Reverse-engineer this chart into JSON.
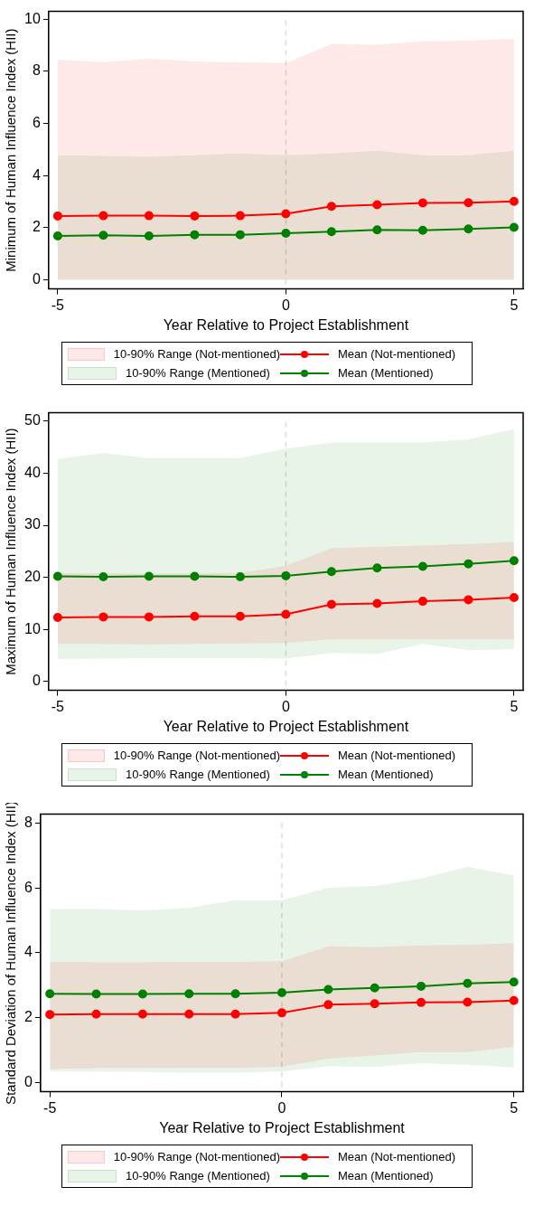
{
  "chart_data": [
    {
      "type": "line",
      "xlabel": "Year Relative to Project Establishment",
      "ylabel": "Minimum of Human Influence Index (HII)",
      "x": [
        -5,
        -4,
        -3,
        -2,
        -1,
        0,
        1,
        2,
        3,
        4,
        5
      ],
      "xlim": [
        -5.2,
        5.2
      ],
      "xticks": [
        -5,
        0,
        5
      ],
      "ylim": [
        -0.35,
        10.3
      ],
      "yticks": [
        0,
        2,
        4,
        6,
        8,
        10
      ],
      "grid": false,
      "legend": "bottom",
      "marker": "circle",
      "line_style": "solid",
      "annotations": [
        "10-90% Range (Not-mentioned)",
        "10-90% Range (Mentioned)"
      ],
      "ref_lines": [
        {
          "axis": "x",
          "value": 0,
          "color": "#dddddd",
          "line_style": "dashed"
        }
      ],
      "series": [
        {
          "name": "Mean (Not-mentioned)",
          "type": "line",
          "color": "#ff0000",
          "values": [
            2.45,
            2.46,
            2.46,
            2.45,
            2.46,
            2.53,
            2.82,
            2.88,
            2.95,
            2.96,
            3.01
          ],
          "lower": [
            0,
            0,
            0,
            0,
            0,
            0,
            0,
            0,
            0,
            0,
            0
          ],
          "upper": [
            8.45,
            8.35,
            8.48,
            8.38,
            8.35,
            8.32,
            9.05,
            9.02,
            9.15,
            9.18,
            9.25
          ]
        },
        {
          "name": "Mean (Mentioned)",
          "type": "line",
          "color": "#008000",
          "values": [
            1.68,
            1.71,
            1.68,
            1.73,
            1.73,
            1.79,
            1.85,
            1.92,
            1.9,
            1.95,
            2.01
          ],
          "lower": [
            0,
            0,
            0,
            0,
            0,
            0,
            0,
            0,
            0,
            0,
            0
          ],
          "upper": [
            4.78,
            4.75,
            4.72,
            4.78,
            4.85,
            4.78,
            4.85,
            4.95,
            4.78,
            4.78,
            4.95
          ]
        }
      ]
    },
    {
      "type": "line",
      "xlabel": "Year Relative to Project Establishment",
      "ylabel": "Maximum of Human Influence Index (HII)",
      "x": [
        -5,
        -4,
        -3,
        -2,
        -1,
        0,
        1,
        2,
        3,
        4,
        5
      ],
      "xlim": [
        -5.2,
        5.2
      ],
      "xticks": [
        -5,
        0,
        5
      ],
      "ylim": [
        -1.7,
        51.6
      ],
      "yticks": [
        0,
        10,
        20,
        30,
        40,
        50
      ],
      "grid": false,
      "legend": "bottom",
      "marker": "circle",
      "line_style": "solid",
      "annotations": [
        "10-90% Range (Not-mentioned)",
        "10-90% Range (Mentioned)"
      ],
      "ref_lines": [
        {
          "axis": "x",
          "value": 0,
          "color": "#dddddd",
          "line_style": "dashed"
        }
      ],
      "series": [
        {
          "name": "Mean (Not-mentioned)",
          "type": "line",
          "color": "#ff0000",
          "values": [
            12.3,
            12.4,
            12.4,
            12.5,
            12.5,
            12.9,
            14.8,
            15.0,
            15.4,
            15.7,
            16.1
          ],
          "lower": [
            7.2,
            7.2,
            7.1,
            7.2,
            7.3,
            7.4,
            8.1,
            8.1,
            8.1,
            8.1,
            8.1
          ],
          "upper": [
            20.8,
            20.8,
            20.7,
            20.7,
            20.9,
            22.2,
            25.6,
            25.9,
            26.1,
            26.4,
            26.8
          ]
        },
        {
          "name": "Mean (Mentioned)",
          "type": "line",
          "color": "#008000",
          "values": [
            20.2,
            20.1,
            20.2,
            20.2,
            20.1,
            20.3,
            21.1,
            21.8,
            22.1,
            22.6,
            23.2
          ],
          "lower": [
            4.3,
            4.4,
            4.5,
            4.5,
            4.5,
            4.4,
            5.5,
            5.3,
            7.2,
            6.0,
            6.2
          ],
          "upper": [
            42.7,
            43.9,
            42.9,
            42.9,
            42.9,
            44.7,
            45.9,
            45.9,
            45.9,
            46.5,
            48.5
          ]
        }
      ]
    },
    {
      "type": "line",
      "xlabel": "Year Relative to Project Establishment",
      "ylabel": "Standard Deviation of Human Influence Index (HII)",
      "x": [
        -5,
        -4,
        -3,
        -2,
        -1,
        0,
        1,
        2,
        3,
        4,
        5
      ],
      "xlim": [
        -5.2,
        5.2
      ],
      "xticks": [
        -5,
        0,
        5
      ],
      "ylim": [
        -0.28,
        8.27
      ],
      "yticks": [
        0,
        2,
        4,
        6,
        8
      ],
      "grid": false,
      "legend": "bottom",
      "marker": "circle",
      "line_style": "solid",
      "annotations": [
        "10-90% Range (Not-mentioned)",
        "10-90% Range (Mentioned)"
      ],
      "ref_lines": [
        {
          "axis": "x",
          "value": 0,
          "color": "#dddddd",
          "line_style": "dashed"
        }
      ],
      "series": [
        {
          "name": "Mean (Not-mentioned)",
          "type": "line",
          "color": "#ff0000",
          "values": [
            2.1,
            2.11,
            2.11,
            2.11,
            2.11,
            2.15,
            2.4,
            2.43,
            2.47,
            2.48,
            2.53
          ],
          "lower": [
            0.42,
            0.45,
            0.45,
            0.45,
            0.45,
            0.49,
            0.74,
            0.84,
            0.94,
            0.94,
            1.1
          ],
          "upper": [
            3.72,
            3.71,
            3.71,
            3.72,
            3.72,
            3.74,
            4.2,
            4.18,
            4.23,
            4.24,
            4.3
          ]
        },
        {
          "name": "Mean (Mentioned)",
          "type": "line",
          "color": "#008000",
          "values": [
            2.74,
            2.73,
            2.73,
            2.74,
            2.74,
            2.77,
            2.87,
            2.92,
            2.97,
            3.06,
            3.1
          ],
          "lower": [
            0.35,
            0.34,
            0.33,
            0.31,
            0.31,
            0.34,
            0.5,
            0.48,
            0.59,
            0.55,
            0.47
          ],
          "upper": [
            5.35,
            5.35,
            5.31,
            5.38,
            5.62,
            5.62,
            6.0,
            6.06,
            6.29,
            6.65,
            6.38
          ]
        }
      ]
    }
  ]
}
